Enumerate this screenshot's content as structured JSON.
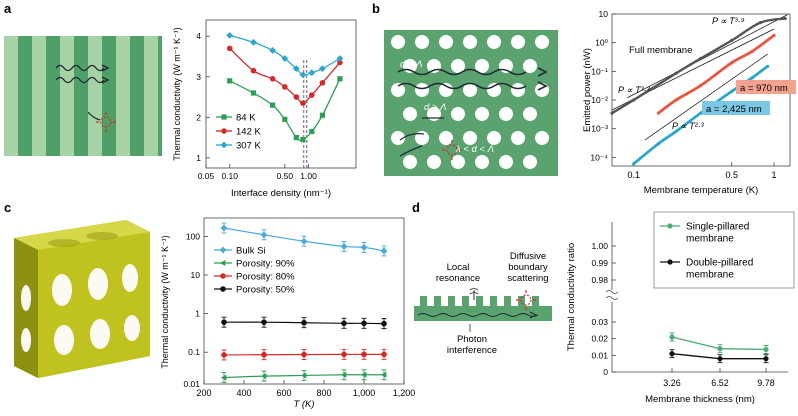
{
  "panels": {
    "a": {
      "letter": "a",
      "chart_data": {
        "type": "line",
        "ylabel": "Thermal conductivity (W m⁻¹ K⁻¹)",
        "xlabel": "Interface density (nm⁻¹)",
        "xscale": "log",
        "xlim": [
          0.05,
          4
        ],
        "ylim": [
          0.75,
          4.4
        ],
        "xticks": [
          "0.05",
          "0.10",
          "0.50",
          "1.00"
        ],
        "yticks": [
          "1",
          "2",
          "3",
          "4"
        ],
        "legend_position": "bottom-left",
        "series": [
          {
            "name": "84 K",
            "color": "#2e9e57",
            "marker": "square",
            "x": [
              0.1,
              0.2,
              0.35,
              0.5,
              0.7,
              0.85,
              1.1,
              1.5,
              2.5
            ],
            "y": [
              2.9,
              2.6,
              2.3,
              1.95,
              1.5,
              1.45,
              1.65,
              2.05,
              2.95
            ]
          },
          {
            "name": "142 K",
            "color": "#d42a2a",
            "marker": "circle",
            "x": [
              0.1,
              0.2,
              0.35,
              0.5,
              0.7,
              0.85,
              1.1,
              1.5,
              2.5
            ],
            "y": [
              3.7,
              3.15,
              2.95,
              2.75,
              2.5,
              2.35,
              2.55,
              2.85,
              3.35
            ]
          },
          {
            "name": "307 K",
            "color": "#2ca6c9",
            "marker": "diamond",
            "x": [
              0.1,
              0.2,
              0.35,
              0.5,
              0.7,
              0.85,
              1.1,
              1.5,
              2.5
            ],
            "y": [
              4.02,
              3.85,
              3.65,
              3.45,
              3.2,
              3.05,
              3.1,
              3.2,
              3.45
            ]
          }
        ],
        "vlines": [
          0.87,
          0.95
        ]
      }
    },
    "b": {
      "letter": "b",
      "labels": {
        "d_lt": "d < Λ",
        "d_gt": "d > Λ",
        "between": "λ < d < Λ"
      },
      "chart_data": {
        "type": "line",
        "ylabel": "Emitted power (nW)",
        "xlabel": "Membrane temperature (K)",
        "xscale": "log",
        "yscale": "log",
        "xlim": [
          0.07,
          1.3
        ],
        "ylim": [
          5e-05,
          10
        ],
        "xticks": [
          "0.1",
          "0.5",
          "1"
        ],
        "yticks": [
          "10⁻⁴",
          "10⁻³",
          "10⁻²",
          "10⁻¹",
          "10⁰",
          "10"
        ],
        "annotations": {
          "full": "Full membrane",
          "t39": "P ∝ T³·⁹",
          "t33": "P ∝ T³·³",
          "t23": "P ∝ T²·³",
          "a970": "a = 970 nm",
          "a2425": "a = 2,425 nm"
        },
        "series": [
          {
            "name": "Full membrane",
            "color": "#555555",
            "x": [
              0.07,
              0.1,
              0.2,
              0.3,
              0.5,
              0.8,
              1.2
            ],
            "y": [
              0.0035,
              0.01,
              0.085,
              0.28,
              1.2,
              5.0,
              7.0
            ]
          },
          {
            "name": "a = 970 nm",
            "color": "#e8573f",
            "x": [
              0.15,
              0.2,
              0.3,
              0.5,
              0.7,
              1.0
            ],
            "y": [
              0.0035,
              0.01,
              0.032,
              0.2,
              0.5,
              1.8
            ]
          },
          {
            "name": "a = 2,425 nm",
            "color": "#2ca6c9",
            "x": [
              0.1,
              0.15,
              0.2,
              0.3,
              0.5,
              0.7,
              0.9
            ],
            "y": [
              6e-05,
              0.0003,
              0.0008,
              0.0035,
              0.02,
              0.06,
              0.15
            ]
          }
        ]
      }
    },
    "c": {
      "letter": "c",
      "chart_data": {
        "type": "line",
        "ylabel": "Thermal conductivity (W m⁻¹ K⁻¹)",
        "xlabel": "T (K)",
        "yscale": "log",
        "xlim": [
          200,
          1200
        ],
        "ylim": [
          0.015,
          300
        ],
        "xticks": [
          "200",
          "400",
          "600",
          "800",
          "1,000",
          "1,200"
        ],
        "yticks": [
          "0.01",
          "0.1",
          "1",
          "10",
          "100"
        ],
        "legend_position": "middle-left",
        "series": [
          {
            "name": "Bulk Si",
            "color": "#4aaad6",
            "marker": "diamond",
            "x": [
              300,
              500,
              700,
              900,
              1000,
              1100
            ],
            "y": [
              165,
              110,
              75,
              55,
              52,
              42
            ]
          },
          {
            "name": "Porosity: 90%",
            "color": "#2e9e57",
            "marker": "triangle",
            "x": [
              300,
              500,
              700,
              900,
              1000,
              1100
            ],
            "y": [
              0.022,
              0.024,
              0.025,
              0.026,
              0.026,
              0.026
            ]
          },
          {
            "name": "Porosity: 80%",
            "color": "#d42a2a",
            "marker": "circle",
            "x": [
              300,
              500,
              700,
              900,
              1000,
              1100
            ],
            "y": [
              0.085,
              0.086,
              0.087,
              0.088,
              0.088,
              0.088
            ]
          },
          {
            "name": "Porosity: 50%",
            "color": "#111111",
            "marker": "circle",
            "x": [
              300,
              500,
              700,
              900,
              1000,
              1100
            ],
            "y": [
              0.6,
              0.6,
              0.58,
              0.56,
              0.56,
              0.55
            ]
          }
        ]
      }
    },
    "d": {
      "letter": "d",
      "labels": {
        "local": "Local",
        "resonance": "resonance",
        "diffusive": "Diffusive",
        "boundary": "boundary",
        "scattering": "scattering",
        "photon": "Photon",
        "interference": "interference"
      },
      "chart_data": {
        "type": "line",
        "ylabel": "Thermal conductivity ratio",
        "xlabel": "Membrane thickness (nm)",
        "categories": [
          "3.26",
          "6.52",
          "9.78"
        ],
        "yticks_top": [
          "0.98",
          "0.99",
          "1.00"
        ],
        "yticks_bottom": [
          "0",
          "0.01",
          "0.02",
          "0.03"
        ],
        "legend_position": "top-right",
        "series": [
          {
            "name": "Single-pillared membrane",
            "name_l1": "Single-pillared",
            "name_l2": "membrane",
            "color": "#4faa78",
            "values": [
              0.021,
              0.014,
              0.0135
            ]
          },
          {
            "name": "Double-pillared membrane",
            "name_l1": "Double-pillared",
            "name_l2": "membrane",
            "color": "#111111",
            "values": [
              0.011,
              0.008,
              0.008
            ]
          }
        ]
      }
    }
  }
}
